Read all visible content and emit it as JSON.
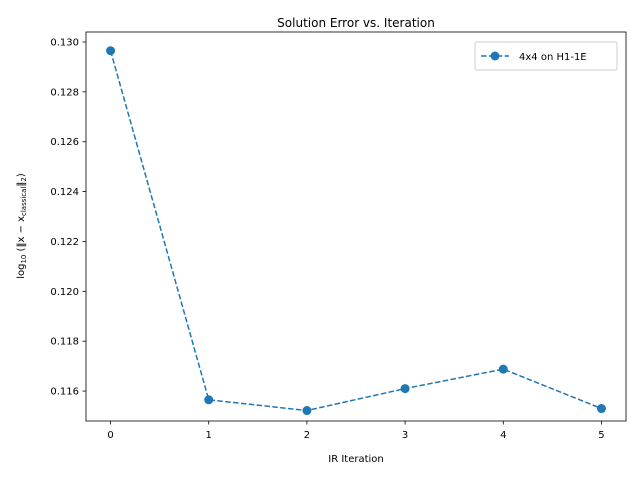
{
  "chart_data": {
    "type": "line",
    "title": "Solution Error vs. Iteration",
    "xlabel": "IR Iteration",
    "ylabel": {
      "prefix": "log",
      "prefix_sub": "10",
      "open": " (‖x − x",
      "sub": "classical",
      "close": "‖",
      "close_sub": "2",
      "end": ")"
    },
    "xlim": [
      -0.25,
      5.25
    ],
    "ylim": [
      0.1148,
      0.1304
    ],
    "xticks": [
      0,
      1,
      2,
      3,
      4,
      5
    ],
    "xtick_labels": [
      "0",
      "1",
      "2",
      "3",
      "4",
      "5"
    ],
    "yticks": [
      0.116,
      0.118,
      0.12,
      0.122,
      0.124,
      0.126,
      0.128,
      0.13
    ],
    "ytick_labels": [
      "0.116",
      "0.118",
      "0.120",
      "0.122",
      "0.124",
      "0.126",
      "0.128",
      "0.130"
    ],
    "grid": false,
    "legend_position": "top-right",
    "series": [
      {
        "name": "4x4 on H1-1E",
        "color": "#1f77b4",
        "linestyle": "dashed",
        "marker": "circle",
        "x": [
          0,
          1,
          2,
          3,
          4,
          5
        ],
        "y": [
          0.12965,
          0.11565,
          0.11522,
          0.1161,
          0.11688,
          0.1153
        ]
      }
    ]
  }
}
